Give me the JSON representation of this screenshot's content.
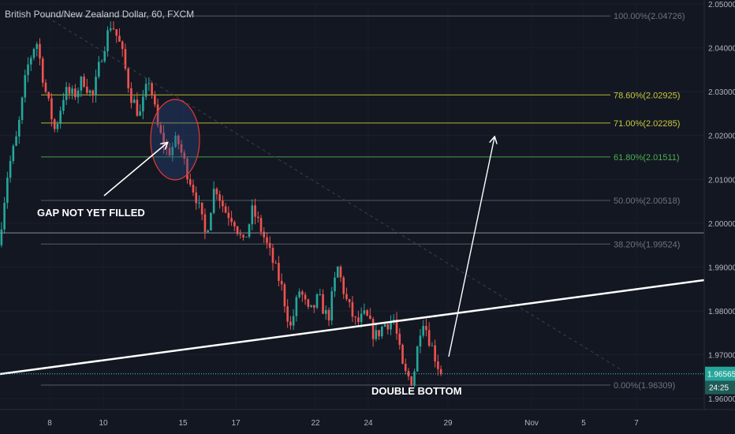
{
  "header": {
    "title": "British Pound/New Zealand Dollar, 60, FXCM"
  },
  "colors": {
    "background": "#131722",
    "up": "#26a69a",
    "down": "#ef5350",
    "fib_grey": "#787b86",
    "fib_yellow": "#b5b531",
    "fib_green": "#43a047",
    "trend": "#ffffff",
    "current_price": "#4dd0e1",
    "time_label": "#2962ff"
  },
  "chart_data": {
    "type": "candlestick",
    "x_ticks": [
      "8",
      "10",
      "15",
      "17",
      "22",
      "24",
      "29",
      "Nov",
      "5",
      "7"
    ],
    "y_ticks": [
      "2.05000",
      "2.04000",
      "2.03000",
      "2.02000",
      "2.01000",
      "2.00000",
      "1.99000",
      "1.98000",
      "1.97000",
      "1.96000"
    ],
    "y_range": [
      1.9575,
      2.05
    ],
    "price_path": [
      [
        0,
        1.995
      ],
      [
        1,
        2.012
      ],
      [
        2,
        2.02
      ],
      [
        3,
        2.035
      ],
      [
        4,
        2.042
      ],
      [
        5,
        2.03
      ],
      [
        6,
        2.021
      ],
      [
        7,
        2.03
      ],
      [
        8,
        2.029
      ],
      [
        9,
        2.033
      ],
      [
        10,
        2.0285
      ],
      [
        11,
        2.039
      ],
      [
        12,
        2.046
      ],
      [
        13,
        2.04
      ],
      [
        14,
        2.0295
      ],
      [
        15,
        2.0245
      ],
      [
        16,
        2.033
      ],
      [
        17,
        2.021
      ],
      [
        18,
        2.016
      ],
      [
        19,
        2.019
      ],
      [
        20,
        2.012
      ],
      [
        21,
        2.006
      ],
      [
        22,
        1.997
      ],
      [
        23,
        2.009
      ],
      [
        24,
        2.003
      ],
      [
        25,
        2.001
      ],
      [
        26,
        1.995
      ],
      [
        27,
        2.003
      ],
      [
        28,
        1.998
      ],
      [
        29,
        1.992
      ],
      [
        30,
        1.986
      ],
      [
        31,
        1.976
      ],
      [
        32,
        1.985
      ],
      [
        33,
        1.979
      ],
      [
        34,
        1.983
      ],
      [
        35,
        1.978
      ],
      [
        36,
        1.99
      ],
      [
        37,
        1.982
      ],
      [
        38,
        1.977
      ],
      [
        39,
        1.979
      ],
      [
        40,
        1.974
      ],
      [
        41,
        1.977
      ],
      [
        42,
        1.978
      ],
      [
        43,
        1.966
      ],
      [
        44,
        1.964
      ],
      [
        45,
        1.979
      ],
      [
        46,
        1.972
      ],
      [
        47,
        1.9656
      ]
    ],
    "fib_levels": [
      {
        "label": "100.00%(2.04726)",
        "price": 2.04726,
        "color": "grey"
      },
      {
        "label": "78.60%(2.02925)",
        "price": 2.02925,
        "color": "yellow"
      },
      {
        "label": "71.00%(2.02285)",
        "price": 2.02285,
        "color": "yellow"
      },
      {
        "label": "61.80%(2.01511)",
        "price": 2.01511,
        "color": "green"
      },
      {
        "label": "50.00%(2.00518)",
        "price": 2.00518,
        "color": "grey"
      },
      {
        "label": "38.20%(1.99524)",
        "price": 1.99524,
        "color": "grey"
      },
      {
        "label": "0.00%(1.96309)",
        "price": 1.96309,
        "color": "grey"
      }
    ],
    "current_price": "1.96565",
    "countdown": "24:25",
    "annotations": {
      "gap": "GAP NOT YET FILLED",
      "double_bottom": "DOUBLE BOTTOM"
    }
  }
}
